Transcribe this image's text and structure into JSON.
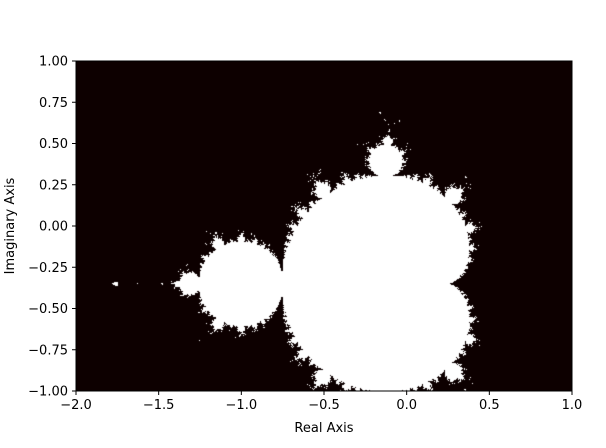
{
  "chart_data": {
    "type": "heatmap",
    "title": "",
    "xlabel": "Real Axis",
    "ylabel": "Imaginary Axis",
    "xlim": [
      -2.0,
      1.0
    ],
    "ylim": [
      -1.0,
      1.0
    ],
    "x_ticks": [
      -2.0,
      -1.5,
      -1.0,
      -0.5,
      0.0,
      0.5,
      1.0
    ],
    "x_tick_labels": [
      "−2.0",
      "−1.5",
      "−1.0",
      "−0.5",
      "0.0",
      "0.5",
      "1.0"
    ],
    "y_ticks": [
      1.0,
      0.75,
      0.5,
      0.25,
      0.0,
      -0.25,
      -0.5,
      -0.75,
      -1.0
    ],
    "y_tick_labels": [
      "1.00",
      "0.75",
      "0.50",
      "0.25",
      "0.00",
      "−0.25",
      "−0.50",
      "−0.75",
      "−1.00"
    ],
    "grid": false,
    "legend": "none",
    "description_of_data": "Mandelbrot set membership mask (iteration z -> z^2 + c) rendered in white over a near-black background, shifted downward by about 0.35 on the imaginary axis.",
    "set": {
      "formula": "z^2 + c",
      "escape_radius": 2,
      "max_iterations": 40,
      "imag_offset": -0.35
    },
    "colors": {
      "inside": "#ffffff",
      "outside": "#0d0000",
      "axes": "#000000",
      "background": "#ffffff"
    }
  }
}
